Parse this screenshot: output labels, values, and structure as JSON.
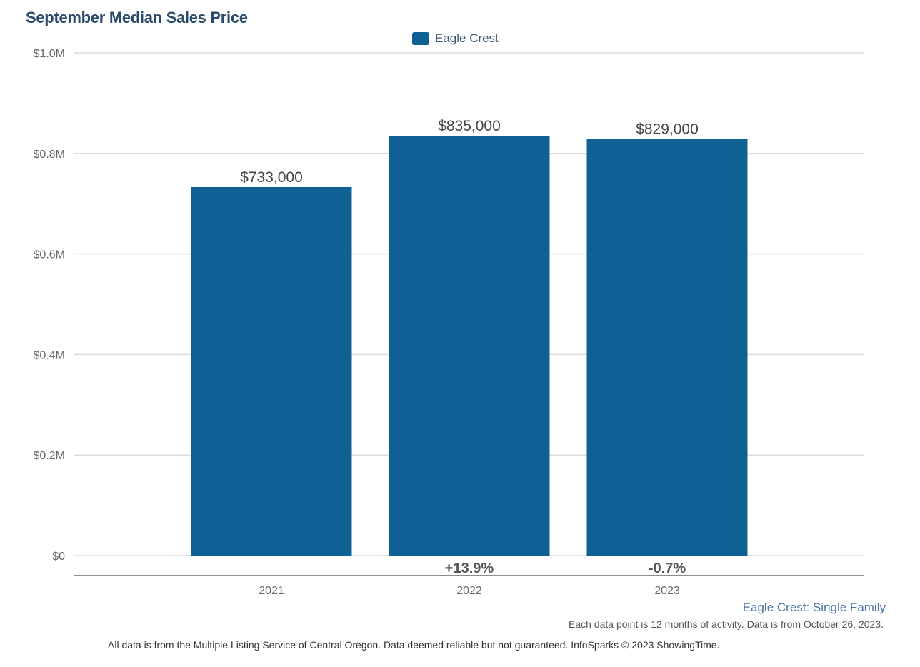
{
  "chart_data": {
    "type": "bar",
    "title": "September Median Sales Price",
    "categories": [
      "2021",
      "2022",
      "2023"
    ],
    "series": [
      {
        "name": "Eagle Crest",
        "values": [
          733000,
          835000,
          829000
        ],
        "color": "#0f6194"
      }
    ],
    "data_labels": [
      "$733,000",
      "$835,000",
      "$829,000"
    ],
    "change_labels": [
      "",
      "+13.9%",
      "-0.7%"
    ],
    "ylim": [
      0,
      1000000
    ],
    "yticks": [
      0,
      200000,
      400000,
      600000,
      800000,
      1000000
    ],
    "ytick_labels": [
      "$0",
      "$0.2M",
      "$0.4M",
      "$0.6M",
      "$0.8M",
      "$1.0M"
    ],
    "grid": true,
    "legend_position": "top-center"
  },
  "footer": {
    "subtitle": "Eagle Crest: Single Family",
    "note": "Each data point is 12 months of activity. Data is from October 26, 2023.",
    "disclaimer": "All data is from the Multiple Listing Service of Central Oregon. Data deemed reliable but not guaranteed. InfoSparks © 2023 ShowingTime."
  }
}
